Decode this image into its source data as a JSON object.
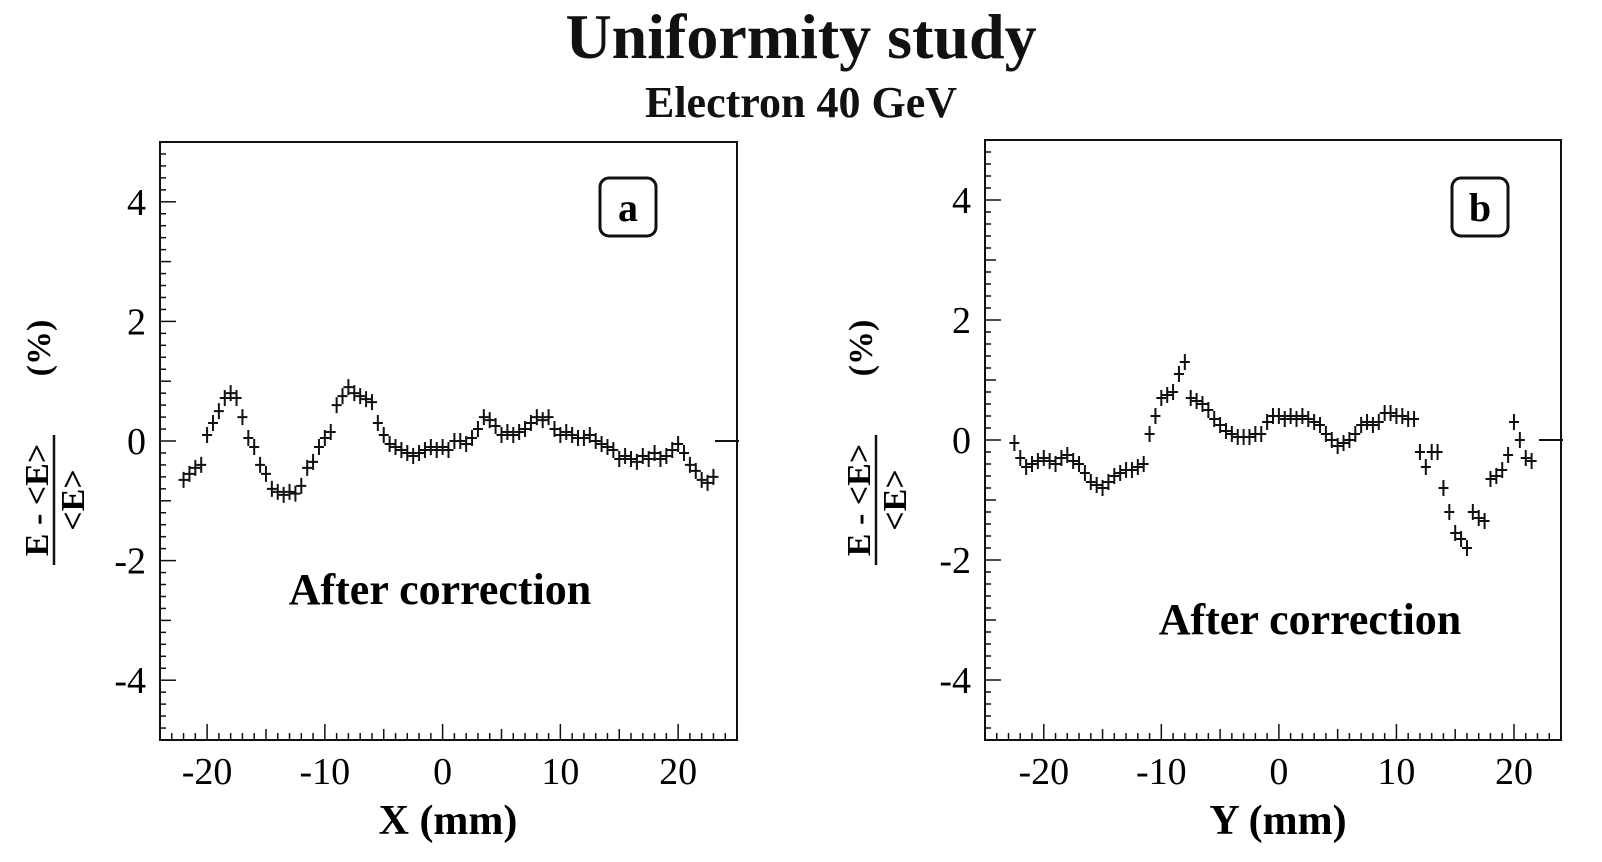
{
  "title": "Uniformity study",
  "subtitle": "Electron 40 GeV",
  "chart_data": [
    {
      "type": "scatter",
      "panel_label": "a",
      "annotation": "After correction",
      "xlabel": "X  (mm)",
      "ylabel_num": "E - <E>",
      "ylabel_den": "<E>",
      "ylabel_unit": "(%)",
      "xlim": [
        -24,
        25
      ],
      "ylim": [
        -5,
        5
      ],
      "xticks": [
        -20,
        -10,
        0,
        10,
        20
      ],
      "yticks": [
        -4,
        -2,
        0,
        2,
        4
      ],
      "xticks_labels": [
        "-20",
        "-10",
        "0",
        "10",
        "20"
      ],
      "yticks_labels": [
        "-4",
        "-2",
        "0",
        "2",
        "4"
      ],
      "points": [
        [
          -22.0,
          -0.65
        ],
        [
          -21.5,
          -0.55
        ],
        [
          -21.0,
          -0.45
        ],
        [
          -20.5,
          -0.4
        ],
        [
          -20.0,
          0.1
        ],
        [
          -19.5,
          0.3
        ],
        [
          -19.0,
          0.5
        ],
        [
          -18.5,
          0.72
        ],
        [
          -18.0,
          0.8
        ],
        [
          -17.5,
          0.72
        ],
        [
          -17.0,
          0.4
        ],
        [
          -16.5,
          0.05
        ],
        [
          -16.0,
          -0.1
        ],
        [
          -15.5,
          -0.4
        ],
        [
          -15.0,
          -0.55
        ],
        [
          -14.5,
          -0.8
        ],
        [
          -14.0,
          -0.85
        ],
        [
          -13.5,
          -0.9
        ],
        [
          -13.0,
          -0.85
        ],
        [
          -12.5,
          -0.88
        ],
        [
          -12.0,
          -0.75
        ],
        [
          -11.5,
          -0.45
        ],
        [
          -11.0,
          -0.35
        ],
        [
          -10.5,
          -0.1
        ],
        [
          -10.0,
          0.05
        ],
        [
          -9.5,
          0.15
        ],
        [
          -9.0,
          0.6
        ],
        [
          -8.5,
          0.75
        ],
        [
          -8.0,
          0.9
        ],
        [
          -7.5,
          0.8
        ],
        [
          -7.0,
          0.75
        ],
        [
          -6.5,
          0.7
        ],
        [
          -6.0,
          0.65
        ],
        [
          -5.5,
          0.3
        ],
        [
          -5.0,
          0.1
        ],
        [
          -4.5,
          -0.05
        ],
        [
          -4.0,
          -0.1
        ],
        [
          -3.5,
          -0.15
        ],
        [
          -3.0,
          -0.2
        ],
        [
          -2.5,
          -0.25
        ],
        [
          -2.0,
          -0.2
        ],
        [
          -1.5,
          -0.15
        ],
        [
          -1.0,
          -0.1
        ],
        [
          -0.5,
          -0.15
        ],
        [
          0.0,
          -0.1
        ],
        [
          0.5,
          -0.15
        ],
        [
          1.0,
          0.0
        ],
        [
          1.5,
          0.0
        ],
        [
          2.0,
          -0.05
        ],
        [
          2.5,
          0.05
        ],
        [
          3.0,
          0.2
        ],
        [
          3.5,
          0.4
        ],
        [
          4.0,
          0.35
        ],
        [
          4.5,
          0.25
        ],
        [
          5.0,
          0.1
        ],
        [
          5.5,
          0.15
        ],
        [
          6.0,
          0.1
        ],
        [
          6.5,
          0.15
        ],
        [
          7.0,
          0.2
        ],
        [
          7.5,
          0.3
        ],
        [
          8.0,
          0.4
        ],
        [
          8.5,
          0.35
        ],
        [
          9.0,
          0.4
        ],
        [
          9.5,
          0.2
        ],
        [
          10.0,
          0.1
        ],
        [
          10.5,
          0.15
        ],
        [
          11.0,
          0.1
        ],
        [
          11.5,
          0.05
        ],
        [
          12.0,
          0.05
        ],
        [
          12.5,
          0.1
        ],
        [
          13.0,
          0.0
        ],
        [
          13.5,
          -0.05
        ],
        [
          14.0,
          -0.1
        ],
        [
          14.5,
          -0.15
        ],
        [
          15.0,
          -0.3
        ],
        [
          15.5,
          -0.25
        ],
        [
          16.0,
          -0.3
        ],
        [
          16.5,
          -0.35
        ],
        [
          17.0,
          -0.25
        ],
        [
          17.5,
          -0.3
        ],
        [
          18.0,
          -0.2
        ],
        [
          18.5,
          -0.3
        ],
        [
          19.0,
          -0.25
        ],
        [
          19.5,
          -0.15
        ],
        [
          20.0,
          -0.05
        ],
        [
          20.5,
          -0.2
        ],
        [
          21.0,
          -0.4
        ],
        [
          21.5,
          -0.5
        ],
        [
          22.0,
          -0.65
        ],
        [
          22.5,
          -0.7
        ],
        [
          23.0,
          -0.6
        ]
      ]
    },
    {
      "type": "scatter",
      "panel_label": "b",
      "annotation": "After correction",
      "xlabel": "Y  (mm)",
      "ylabel_num": "E - <E>",
      "ylabel_den": "<E>",
      "ylabel_unit": "(%)",
      "xlim": [
        -25,
        24
      ],
      "ylim": [
        -5,
        5
      ],
      "xticks": [
        -20,
        -10,
        0,
        10,
        20
      ],
      "yticks": [
        -4,
        -2,
        0,
        2,
        4
      ],
      "xticks_labels": [
        "-20",
        "-10",
        "0",
        "10",
        "20"
      ],
      "yticks_labels": [
        "-4",
        "-2",
        "0",
        "2",
        "4"
      ],
      "points": [
        [
          -22.5,
          -0.05
        ],
        [
          -22.0,
          -0.3
        ],
        [
          -21.5,
          -0.45
        ],
        [
          -21.0,
          -0.4
        ],
        [
          -20.5,
          -0.35
        ],
        [
          -20.0,
          -0.3
        ],
        [
          -19.5,
          -0.35
        ],
        [
          -19.0,
          -0.4
        ],
        [
          -18.5,
          -0.3
        ],
        [
          -18.0,
          -0.25
        ],
        [
          -17.5,
          -0.35
        ],
        [
          -17.0,
          -0.4
        ],
        [
          -16.5,
          -0.55
        ],
        [
          -16.0,
          -0.7
        ],
        [
          -15.5,
          -0.75
        ],
        [
          -15.0,
          -0.8
        ],
        [
          -14.5,
          -0.7
        ],
        [
          -14.0,
          -0.6
        ],
        [
          -13.5,
          -0.55
        ],
        [
          -13.0,
          -0.5
        ],
        [
          -12.5,
          -0.5
        ],
        [
          -12.0,
          -0.45
        ],
        [
          -11.5,
          -0.4
        ],
        [
          -11.0,
          0.1
        ],
        [
          -10.5,
          0.4
        ],
        [
          -10.0,
          0.7
        ],
        [
          -9.5,
          0.75
        ],
        [
          -9.0,
          0.8
        ],
        [
          -8.5,
          1.1
        ],
        [
          -8.0,
          1.3
        ],
        [
          -7.5,
          0.7
        ],
        [
          -7.0,
          0.65
        ],
        [
          -6.5,
          0.6
        ],
        [
          -6.0,
          0.5
        ],
        [
          -5.5,
          0.35
        ],
        [
          -5.0,
          0.25
        ],
        [
          -4.5,
          0.15
        ],
        [
          -4.0,
          0.1
        ],
        [
          -3.5,
          0.05
        ],
        [
          -3.0,
          0.05
        ],
        [
          -2.5,
          0.05
        ],
        [
          -2.0,
          0.1
        ],
        [
          -1.5,
          0.1
        ],
        [
          -1.0,
          0.3
        ],
        [
          -0.5,
          0.4
        ],
        [
          0.0,
          0.4
        ],
        [
          0.5,
          0.35
        ],
        [
          1.0,
          0.4
        ],
        [
          1.5,
          0.35
        ],
        [
          2.0,
          0.4
        ],
        [
          2.5,
          0.35
        ],
        [
          3.0,
          0.3
        ],
        [
          3.5,
          0.25
        ],
        [
          4.0,
          0.1
        ],
        [
          4.5,
          0.0
        ],
        [
          5.0,
          -0.1
        ],
        [
          5.5,
          -0.05
        ],
        [
          6.0,
          0.0
        ],
        [
          6.5,
          0.1
        ],
        [
          7.0,
          0.25
        ],
        [
          7.5,
          0.3
        ],
        [
          8.0,
          0.25
        ],
        [
          8.5,
          0.3
        ],
        [
          9.0,
          0.45
        ],
        [
          9.5,
          0.45
        ],
        [
          10.0,
          0.4
        ],
        [
          10.5,
          0.4
        ],
        [
          11.0,
          0.35
        ],
        [
          11.5,
          0.35
        ],
        [
          12.0,
          -0.2
        ],
        [
          12.5,
          -0.45
        ],
        [
          13.0,
          -0.2
        ],
        [
          13.5,
          -0.2
        ],
        [
          14.0,
          -0.8
        ],
        [
          14.5,
          -1.2
        ],
        [
          15.0,
          -1.55
        ],
        [
          15.5,
          -1.65
        ],
        [
          16.0,
          -1.8
        ],
        [
          16.5,
          -1.2
        ],
        [
          17.0,
          -1.3
        ],
        [
          17.5,
          -1.35
        ],
        [
          18.0,
          -0.65
        ],
        [
          18.5,
          -0.6
        ],
        [
          19.0,
          -0.5
        ],
        [
          19.5,
          -0.25
        ],
        [
          20.0,
          0.3
        ],
        [
          20.5,
          0.0
        ],
        [
          21.0,
          -0.3
        ],
        [
          21.5,
          -0.35
        ]
      ]
    }
  ]
}
